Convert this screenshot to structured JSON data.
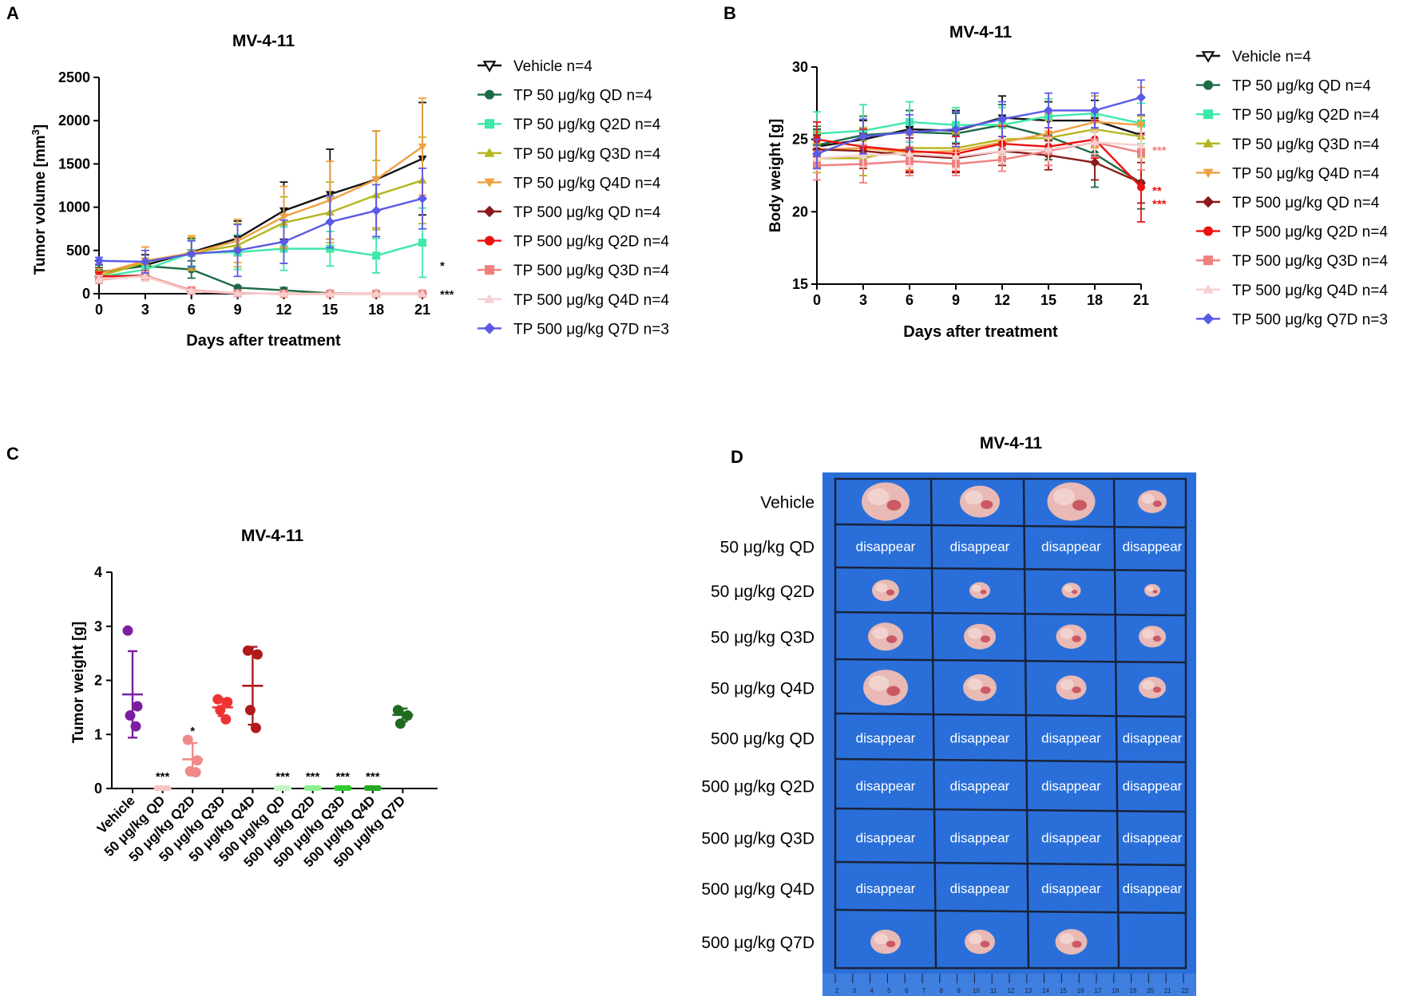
{
  "panel_labels": [
    "A",
    "B",
    "C",
    "D"
  ],
  "legend_entries": [
    {
      "label": "Vehicle n=4",
      "color": "#111111",
      "marker": "tri-down"
    },
    {
      "label": "TP 50 μg/kg QD n=4",
      "color": "#1c6b45",
      "marker": "circle"
    },
    {
      "label": "TP 50 μg/kg Q2D n=4",
      "color": "#3ee8a8",
      "marker": "square"
    },
    {
      "label": "TP 50 μg/kg Q3D n=4",
      "color": "#b5b51e",
      "marker": "tri-up"
    },
    {
      "label": "TP 50 μg/kg Q4D n=4",
      "color": "#f0a040",
      "marker": "tri-down"
    },
    {
      "label": "TP 500 μg/kg QD n=4",
      "color": "#8b1a1a",
      "marker": "diamond"
    },
    {
      "label": "TP 500 μg/kg Q2D n=4",
      "color": "#ee1111",
      "marker": "circle"
    },
    {
      "label": "TP 500 μg/kg Q3D n=4",
      "color": "#f08080",
      "marker": "square"
    },
    {
      "label": "TP 500 μg/kg Q4D n=4",
      "color": "#f7cfcf",
      "marker": "tri-up"
    },
    {
      "label": "TP 500 μg/kg Q7D n=3",
      "color": "#5a5ae6",
      "marker": "diamond"
    }
  ],
  "chart_data": [
    {
      "panel": "A",
      "type": "line",
      "title": "MV-4-11",
      "xlabel": "Days after treatment",
      "ylabel": "Tumor volume [mm",
      "ylabel_sup": "3",
      "ylabel_end": "]",
      "x": [
        0,
        3,
        6,
        9,
        12,
        15,
        18,
        21
      ],
      "xticks": [
        "0",
        "3",
        "6",
        "9",
        "12",
        "15",
        "18",
        "21"
      ],
      "yticks": [
        0,
        500,
        1000,
        1500,
        2000,
        2500
      ],
      "xlim": [
        0,
        21
      ],
      "ylim": [
        0,
        2500
      ],
      "series": [
        {
          "name": "Vehicle n=4",
          "values": [
            240,
            330,
            480,
            640,
            960,
            1150,
            1320,
            1560
          ],
          "err": [
            60,
            120,
            160,
            200,
            330,
            520,
            560,
            650
          ]
        },
        {
          "name": "TP 50 μg/kg QD n=4",
          "values": [
            250,
            320,
            280,
            70,
            40,
            5,
            0,
            0
          ],
          "err": [
            80,
            90,
            100,
            20,
            30,
            5,
            0,
            0
          ]
        },
        {
          "name": "TP 50 μg/kg Q2D n=4",
          "values": [
            190,
            280,
            470,
            480,
            520,
            520,
            440,
            590
          ],
          "err": [
            50,
            100,
            150,
            200,
            250,
            200,
            200,
            400
          ]
        },
        {
          "name": "TP 50 μg/kg Q3D n=4",
          "values": [
            200,
            360,
            470,
            560,
            820,
            940,
            1140,
            1310
          ],
          "err": [
            60,
            180,
            180,
            250,
            300,
            350,
            400,
            500
          ]
        },
        {
          "name": "TP 50 μg/kg Q4D n=4",
          "values": [
            230,
            380,
            470,
            610,
            890,
            1080,
            1320,
            1700
          ],
          "err": [
            60,
            160,
            200,
            250,
            350,
            450,
            560,
            560
          ]
        },
        {
          "name": "TP 500 μg/kg QD n=4",
          "values": [
            200,
            210,
            30,
            5,
            0,
            0,
            0,
            0
          ],
          "err": [
            50,
            50,
            20,
            5,
            0,
            0,
            0,
            0
          ]
        },
        {
          "name": "TP 500 μg/kg Q2D n=4",
          "values": [
            200,
            200,
            30,
            5,
            0,
            0,
            0,
            0
          ],
          "err": [
            50,
            50,
            20,
            5,
            0,
            0,
            0,
            0
          ]
        },
        {
          "name": "TP 500 μg/kg Q3D n=4",
          "values": [
            160,
            210,
            40,
            5,
            0,
            0,
            0,
            0
          ],
          "err": [
            40,
            60,
            20,
            5,
            0,
            0,
            0,
            0
          ]
        },
        {
          "name": "TP 500 μg/kg Q4D n=4",
          "values": [
            170,
            200,
            30,
            5,
            0,
            0,
            0,
            0
          ],
          "err": [
            40,
            50,
            20,
            5,
            0,
            0,
            0,
            0
          ]
        },
        {
          "name": "TP 500 μg/kg Q7D n=3",
          "values": [
            380,
            370,
            460,
            500,
            600,
            830,
            960,
            1100
          ],
          "err": [
            40,
            130,
            150,
            300,
            250,
            300,
            300,
            350
          ]
        }
      ],
      "annotations": [
        {
          "text": "*",
          "x": 21,
          "y": 330,
          "color": "#111111"
        },
        {
          "text": "***",
          "x": 21,
          "y": 0,
          "color": "#111111"
        }
      ]
    },
    {
      "panel": "B",
      "type": "line",
      "title": "MV-4-11",
      "xlabel": "Days after treatment",
      "ylabel": "Body weight [g]",
      "x": [
        0,
        3,
        6,
        9,
        12,
        15,
        18,
        21
      ],
      "xticks": [
        "0",
        "3",
        "6",
        "9",
        "12",
        "15",
        "18",
        "21"
      ],
      "yticks": [
        15,
        20,
        25,
        30
      ],
      "xlim": [
        0,
        21
      ],
      "ylim": [
        15,
        30
      ],
      "series": [
        {
          "name": "Vehicle n=4",
          "values": [
            24.5,
            25.0,
            25.7,
            25.6,
            26.5,
            26.3,
            26.3,
            25.3
          ],
          "err": [
            1.2,
            1.3,
            1.3,
            1.4,
            1.5,
            1.3,
            1.4,
            1.4
          ]
        },
        {
          "name": "TP 50 μg/kg QD n=4",
          "values": [
            24.6,
            25.3,
            25.5,
            25.4,
            26.0,
            25.2,
            24.0,
            22.0
          ],
          "err": [
            1.3,
            1.3,
            1.5,
            1.4,
            1.4,
            1.6,
            2.3,
            1.8
          ]
        },
        {
          "name": "TP 50 μg/kg Q2D n=4",
          "values": [
            25.4,
            25.6,
            26.2,
            26.0,
            26.0,
            26.6,
            26.8,
            26.1
          ],
          "err": [
            1.5,
            1.8,
            1.4,
            1.2,
            1.2,
            1.2,
            1.2,
            1.4
          ]
        },
        {
          "name": "TP 50 μg/kg Q3D n=4",
          "values": [
            23.7,
            23.7,
            24.4,
            24.4,
            25.0,
            25.1,
            25.7,
            25.2
          ],
          "err": [
            1.0,
            1.2,
            1.0,
            1.1,
            1.0,
            1.2,
            1.2,
            1.4
          ]
        },
        {
          "name": "TP 50 μg/kg Q4D n=4",
          "values": [
            24.3,
            24.4,
            24.1,
            24.2,
            24.8,
            25.4,
            26.2,
            26.0
          ],
          "err": [
            1.2,
            1.4,
            1.2,
            1.2,
            1.2,
            1.4,
            1.8,
            2.6
          ]
        },
        {
          "name": "TP 500 μg/kg QD n=4",
          "values": [
            24.3,
            24.2,
            23.9,
            23.7,
            24.2,
            23.9,
            23.4,
            22.0
          ],
          "err": [
            1.0,
            1.2,
            1.2,
            1.0,
            1.0,
            1.0,
            1.2,
            1.4
          ]
        },
        {
          "name": "TP 500 μg/kg Q2D n=4",
          "values": [
            25.0,
            24.5,
            24.2,
            24.0,
            24.7,
            24.5,
            25.0,
            21.7
          ],
          "err": [
            1.2,
            1.2,
            1.4,
            1.2,
            1.2,
            1.3,
            1.3,
            2.4
          ]
        },
        {
          "name": "TP 500 μg/kg Q3D n=4",
          "values": [
            23.2,
            23.3,
            23.5,
            23.3,
            23.6,
            24.2,
            24.8,
            24.1
          ],
          "err": [
            1.0,
            1.3,
            1.0,
            0.8,
            0.8,
            1.0,
            1.0,
            1.2
          ]
        },
        {
          "name": "TP 500 μg/kg Q4D n=4",
          "values": [
            23.7,
            23.9,
            24.0,
            23.8,
            24.2,
            24.3,
            24.8,
            24.6
          ],
          "err": [
            0.8,
            0.8,
            0.9,
            0.8,
            0.8,
            0.8,
            0.8,
            0.9
          ]
        },
        {
          "name": "TP 500 μg/kg Q7D n=3",
          "values": [
            24.0,
            25.2,
            25.5,
            25.7,
            26.4,
            27.0,
            27.0,
            27.9
          ],
          "err": [
            1.0,
            1.2,
            1.2,
            1.2,
            1.2,
            1.2,
            1.2,
            1.2
          ]
        }
      ],
      "annotations": [
        {
          "text": "***",
          "x": 21,
          "y": 24.3,
          "color": "#f08080"
        },
        {
          "text": "**",
          "x": 21,
          "y": 21.5,
          "color": "#ee1111"
        },
        {
          "text": "***",
          "x": 21,
          "y": 20.6,
          "color": "#ee1111"
        }
      ]
    },
    {
      "panel": "C",
      "type": "scatter",
      "title": "MV-4-11",
      "xlabel": "",
      "ylabel": "Tumor weight [g]",
      "yticks": [
        0,
        1,
        2,
        3,
        4
      ],
      "ylim": [
        0,
        4
      ],
      "categories": [
        "Vehicle",
        "50 μg/kg QD",
        "50 μg/kg Q2D",
        "50 μg/kg Q3D",
        "50 μg/kg Q4D",
        "500 μg/kg QD",
        "500 μg/kg Q2D",
        "500 μg/kg Q3D",
        "500 μg/kg Q4D",
        "500 μg/kg Q7D"
      ],
      "colors": [
        "#7b1fa2",
        "#f7c4c4",
        "#f08a8a",
        "#ee3333",
        "#b01a1a",
        "#c8f5c8",
        "#8ef08e",
        "#33cc33",
        "#22aa22",
        "#1f6b1f"
      ],
      "groups": [
        {
          "points": [
            2.92,
            1.52,
            1.35,
            1.15
          ],
          "mean": 1.74,
          "sd": 0.8,
          "sig": ""
        },
        {
          "points": [
            0,
            0,
            0,
            0
          ],
          "mean": 0,
          "sd": 0,
          "sig": "***"
        },
        {
          "points": [
            0.9,
            0.52,
            0.32,
            0.3
          ],
          "mean": 0.54,
          "sd": 0.3,
          "sig": "*"
        },
        {
          "points": [
            1.65,
            1.6,
            1.45,
            1.28
          ],
          "mean": 1.5,
          "sd": 0.16,
          "sig": ""
        },
        {
          "points": [
            2.55,
            2.48,
            1.45,
            1.12
          ],
          "mean": 1.9,
          "sd": 0.72,
          "sig": ""
        },
        {
          "points": [
            0,
            0,
            0,
            0
          ],
          "mean": 0,
          "sd": 0,
          "sig": "***"
        },
        {
          "points": [
            0,
            0,
            0,
            0
          ],
          "mean": 0,
          "sd": 0,
          "sig": "***"
        },
        {
          "points": [
            0,
            0,
            0,
            0
          ],
          "mean": 0,
          "sd": 0,
          "sig": "***"
        },
        {
          "points": [
            0,
            0,
            0,
            0
          ],
          "mean": 0,
          "sd": 0,
          "sig": "***"
        },
        {
          "points": [
            1.45,
            1.35,
            1.2
          ],
          "mean": 1.36,
          "sd": 0.12,
          "sig": ""
        }
      ]
    }
  ],
  "panel_d": {
    "title": "MV-4-11",
    "row_labels": [
      "Vehicle",
      "50 μg/kg QD",
      "50 μg/kg Q2D",
      "50 μg/kg Q3D",
      "50 μg/kg Q4D",
      "500 μg/kg QD",
      "500 μg/kg Q2D",
      "500 μg/kg Q3D",
      "500 μg/kg Q4D",
      "500 μg/kg Q7D"
    ],
    "cell_text": "disappear",
    "rows": [
      [
        "tumor",
        "tumor",
        "tumor",
        "tumor"
      ],
      [
        "disappear",
        "disappear",
        "disappear",
        "disappear"
      ],
      [
        "tumor",
        "tumor",
        "tumor",
        "tumor"
      ],
      [
        "tumor",
        "tumor",
        "tumor",
        "tumor"
      ],
      [
        "tumor",
        "tumor",
        "tumor",
        "tumor"
      ],
      [
        "disappear",
        "disappear",
        "disappear",
        "disappear"
      ],
      [
        "disappear",
        "disappear",
        "disappear",
        "disappear"
      ],
      [
        "disappear",
        "disappear",
        "disappear",
        "disappear"
      ],
      [
        "disappear",
        "disappear",
        "disappear",
        "disappear"
      ],
      [
        "tumor",
        "tumor",
        "tumor",
        "empty"
      ]
    ],
    "background_color": "#2a6fd9",
    "ruler_marks": [
      "2",
      "3",
      "4",
      "5",
      "6",
      "7",
      "8",
      "9",
      "10",
      "11",
      "12",
      "13",
      "14",
      "15",
      "16",
      "17",
      "18",
      "19",
      "20",
      "21",
      "22"
    ]
  }
}
